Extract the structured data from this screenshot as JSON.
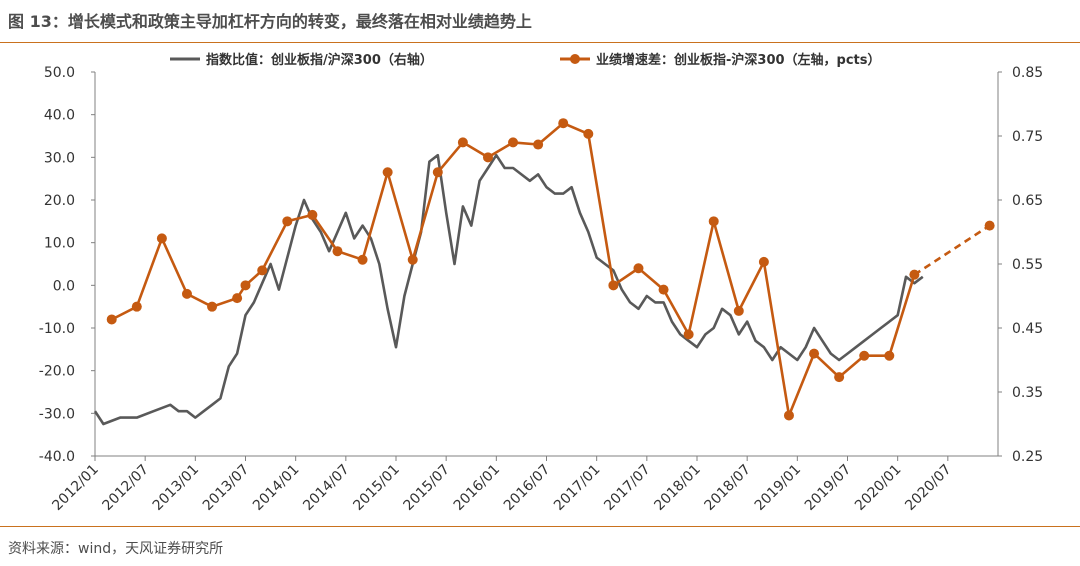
{
  "figure": {
    "title": "图 13：增长模式和政策主导加杠杆方向的转变，最终落在相对业绩趋势上",
    "source": "资料来源：wind，天风证券研究所"
  },
  "colors": {
    "ratio": "#595959",
    "growth": "#c55a11",
    "rule": "#c9711e",
    "axis": "#808080"
  },
  "chart_data": {
    "type": "line",
    "title": "",
    "x_ticks": [
      "2012/01",
      "2012/07",
      "2013/01",
      "2013/07",
      "2014/01",
      "2014/07",
      "2015/01",
      "2015/07",
      "2016/01",
      "2016/07",
      "2017/01",
      "2017/07",
      "2018/01",
      "2018/07",
      "2019/01",
      "2019/07",
      "2020/01",
      "2020/07"
    ],
    "y_left": {
      "ylim": [
        -40,
        50
      ],
      "ticks": [
        "50.0",
        "40.0",
        "30.0",
        "20.0",
        "10.0",
        "0.0",
        "-10.0",
        "-20.0",
        "-30.0",
        "-40.0"
      ]
    },
    "y_right": {
      "ylim": [
        0.25,
        0.85
      ],
      "ticks": [
        "0.85",
        "0.75",
        "0.65",
        "0.55",
        "0.45",
        "0.35",
        "0.25"
      ]
    },
    "series": [
      {
        "name": "指数比值：创业板指/沪深300（右轴）",
        "axis": "right",
        "style": "line",
        "points": [
          [
            "2012/01",
            0.32
          ],
          [
            "2012/02",
            0.3
          ],
          [
            "2012/04",
            0.31
          ],
          [
            "2012/06",
            0.31
          ],
          [
            "2012/08",
            0.32
          ],
          [
            "2012/10",
            0.33
          ],
          [
            "2012/11",
            0.32
          ],
          [
            "2012/12",
            0.32
          ],
          [
            "2013/01",
            0.31
          ],
          [
            "2013/02",
            0.32
          ],
          [
            "2013/03",
            0.33
          ],
          [
            "2013/04",
            0.34
          ],
          [
            "2013/05",
            0.39
          ],
          [
            "2013/06",
            0.41
          ],
          [
            "2013/07",
            0.47
          ],
          [
            "2013/08",
            0.49
          ],
          [
            "2013/09",
            0.52
          ],
          [
            "2013/10",
            0.55
          ],
          [
            "2013/11",
            0.51
          ],
          [
            "2013/12",
            0.56
          ],
          [
            "2014/01",
            0.61
          ],
          [
            "2014/02",
            0.65
          ],
          [
            "2014/03",
            0.62
          ],
          [
            "2014/04",
            0.6
          ],
          [
            "2014/05",
            0.57
          ],
          [
            "2014/06",
            0.6
          ],
          [
            "2014/07",
            0.63
          ],
          [
            "2014/08",
            0.59
          ],
          [
            "2014/09",
            0.61
          ],
          [
            "2014/10",
            0.59
          ],
          [
            "2014/11",
            0.55
          ],
          [
            "2014/12",
            0.48
          ],
          [
            "2015/01",
            0.42
          ],
          [
            "2015/02",
            0.5
          ],
          [
            "2015/03",
            0.55
          ],
          [
            "2015/04",
            0.6
          ],
          [
            "2015/05",
            0.71
          ],
          [
            "2015/06",
            0.72
          ],
          [
            "2015/07",
            0.63
          ],
          [
            "2015/08",
            0.55
          ],
          [
            "2015/09",
            0.64
          ],
          [
            "2015/10",
            0.61
          ],
          [
            "2015/11",
            0.68
          ],
          [
            "2015/12",
            0.7
          ],
          [
            "2016/01",
            0.72
          ],
          [
            "2016/02",
            0.7
          ],
          [
            "2016/03",
            0.7
          ],
          [
            "2016/04",
            0.69
          ],
          [
            "2016/05",
            0.68
          ],
          [
            "2016/06",
            0.69
          ],
          [
            "2016/07",
            0.67
          ],
          [
            "2016/08",
            0.66
          ],
          [
            "2016/09",
            0.66
          ],
          [
            "2016/10",
            0.67
          ],
          [
            "2016/11",
            0.63
          ],
          [
            "2016/12",
            0.6
          ],
          [
            "2017/01",
            0.56
          ],
          [
            "2017/02",
            0.55
          ],
          [
            "2017/03",
            0.54
          ],
          [
            "2017/04",
            0.51
          ],
          [
            "2017/05",
            0.49
          ],
          [
            "2017/06",
            0.48
          ],
          [
            "2017/07",
            0.5
          ],
          [
            "2017/08",
            0.49
          ],
          [
            "2017/09",
            0.49
          ],
          [
            "2017/10",
            0.46
          ],
          [
            "2017/11",
            0.44
          ],
          [
            "2017/12",
            0.43
          ],
          [
            "2018/01",
            0.42
          ],
          [
            "2018/02",
            0.44
          ],
          [
            "2018/03",
            0.45
          ],
          [
            "2018/04",
            0.48
          ],
          [
            "2018/05",
            0.47
          ],
          [
            "2018/06",
            0.44
          ],
          [
            "2018/07",
            0.46
          ],
          [
            "2018/08",
            0.43
          ],
          [
            "2018/09",
            0.42
          ],
          [
            "2018/10",
            0.4
          ],
          [
            "2018/11",
            0.42
          ],
          [
            "2018/12",
            0.41
          ],
          [
            "2019/01",
            0.4
          ],
          [
            "2019/02",
            0.42
          ],
          [
            "2019/03",
            0.45
          ],
          [
            "2019/04",
            0.43
          ],
          [
            "2019/05",
            0.41
          ],
          [
            "2019/06",
            0.4
          ],
          [
            "2019/07",
            0.41
          ],
          [
            "2019/08",
            0.42
          ],
          [
            "2019/09",
            0.43
          ],
          [
            "2019/10",
            0.44
          ],
          [
            "2019/11",
            0.45
          ],
          [
            "2019/12",
            0.46
          ],
          [
            "2020/01",
            0.47
          ],
          [
            "2020/02",
            0.53
          ],
          [
            "2020/03",
            0.52
          ],
          [
            "2020/04",
            0.53
          ]
        ]
      },
      {
        "name": "业绩增速差：创业板指-沪深300（左轴，pcts）",
        "axis": "left",
        "style": "line+markers",
        "points": [
          [
            "2012/03",
            -8
          ],
          [
            "2012/06",
            -5
          ],
          [
            "2012/09",
            11
          ],
          [
            "2012/12",
            -2
          ],
          [
            "2013/03",
            -5
          ],
          [
            "2013/06",
            -3
          ],
          [
            "2013/07",
            0
          ],
          [
            "2013/09",
            3.5
          ],
          [
            "2013/12",
            15
          ],
          [
            "2014/03",
            16.5
          ],
          [
            "2014/06",
            8
          ],
          [
            "2014/09",
            6
          ],
          [
            "2014/12",
            26.5
          ],
          [
            "2015/03",
            6
          ],
          [
            "2015/06",
            26.5
          ],
          [
            "2015/09",
            33.5
          ],
          [
            "2015/12",
            30
          ],
          [
            "2016/03",
            33.5
          ],
          [
            "2016/06",
            33
          ],
          [
            "2016/09",
            38
          ],
          [
            "2016/12",
            35.5
          ],
          [
            "2017/03",
            0
          ],
          [
            "2017/06",
            4
          ],
          [
            "2017/09",
            -1
          ],
          [
            "2017/12",
            -11.5
          ],
          [
            "2018/03",
            15
          ],
          [
            "2018/06",
            -6
          ],
          [
            "2018/09",
            5.5
          ],
          [
            "2018/12",
            -30.5
          ],
          [
            "2019/03",
            -16
          ],
          [
            "2019/06",
            -21.5
          ],
          [
            "2019/09",
            -16.5
          ],
          [
            "2019/12",
            -16.5
          ],
          [
            "2020/03",
            2.5
          ]
        ],
        "forecast_points": [
          [
            "2020/03",
            2.5
          ],
          [
            "2020/12",
            14
          ]
        ]
      }
    ],
    "legend_placement": "top",
    "grid": false
  }
}
